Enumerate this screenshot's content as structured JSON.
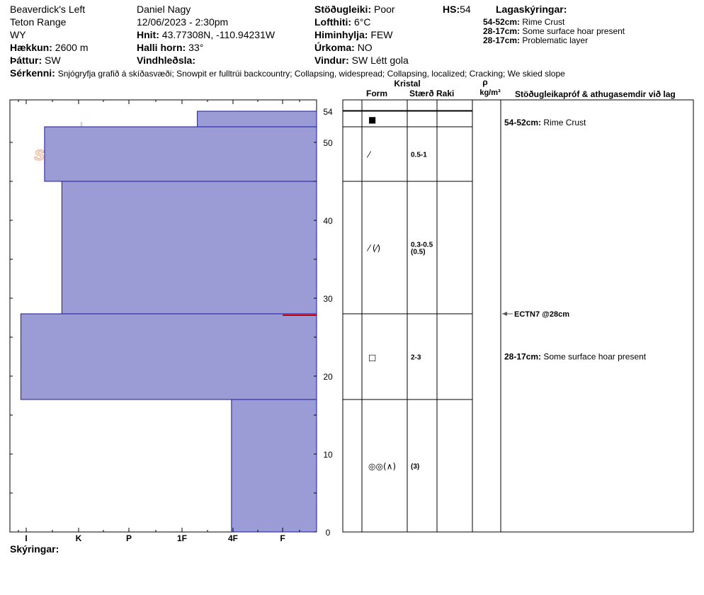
{
  "header": {
    "location": "Beaverdick's Left",
    "range": "Teton Range",
    "state": "WY",
    "elevation_label": "Hækkun:",
    "elevation": "2600 m",
    "aspect_label": "Þáttur:",
    "aspect": "SW",
    "observer": "Daniel Nagy",
    "datetime": "12/06/2023 - 2:30pm",
    "coords_label": "Hnit:",
    "coords": "43.77308N, -110.94231W",
    "slope_label": "Halli horn:",
    "slope": "33°",
    "wind_loading_label": "Vindhleðsla:",
    "wind_loading": "",
    "stability_label": "Stöðugleiki:",
    "stability": "Poor",
    "hs_label": "HS:",
    "hs": "54",
    "air_temp_label": "Lofthiti:",
    "air_temp": "6°C",
    "sky_label": "Himinhylja:",
    "sky": "FEW",
    "precip_label": "Úrkoma:",
    "precip": "NO",
    "wind_label": "Vindur:",
    "wind": "SW Létt gola",
    "features_label": "Sérkenni:",
    "features": "Snjógryfja grafið á skíðasvæði;  Snowpit er fulltrúi backcountry;  Collapsing, widespread;  Collapsing, localized;  Cracking;  We skied slope"
  },
  "legend": {
    "title": "Lagaskýringar:",
    "items": [
      {
        "range": "54-52cm:",
        "text": "Rime Crust"
      },
      {
        "range": "28-17cm:",
        "text": "Some surface hoar present"
      },
      {
        "range": "28-17cm:",
        "text": "Problematic layer"
      }
    ]
  },
  "table_headers": {
    "kristal": "Kristal",
    "form": "Form",
    "size": "Stærð",
    "moisture": "Raki",
    "rho": "ρ",
    "density_unit": "kg/m³",
    "comments": "Stöðugleikapróf & athugasemdir við lag"
  },
  "footer": {
    "notes_label": "Skýringar:"
  },
  "watermark": "SNOW PILOT",
  "colors": {
    "layer_fill": "#9b9bd6",
    "layer_stroke": "#1a1aa0",
    "problem_line": "#cc0000",
    "watermark": "#f2b89a"
  },
  "chart_data": {
    "type": "bar",
    "orientation": "horizontal",
    "y_unit": "cm",
    "ylim": [
      0,
      54
    ],
    "y_ticks": [
      "0",
      "10",
      "20",
      "30",
      "40",
      "50",
      "54"
    ],
    "x_categories": [
      "I",
      "K",
      "P",
      "1F",
      "4F",
      "F"
    ],
    "hardness_scale_max": 6,
    "layers": [
      {
        "top": 54,
        "bottom": 52,
        "hardness": 4.3,
        "form_icon": "■",
        "size": "",
        "comment_range": "54-52cm:",
        "comment": "Rime Crust"
      },
      {
        "top": 52,
        "bottom": 45,
        "hardness": 1.35,
        "form_icon": "⁄",
        "size": "0.5-1",
        "comment_range": "",
        "comment": ""
      },
      {
        "top": 45,
        "bottom": 28,
        "hardness": 1.68,
        "form_icon": "⁄ (⁄)",
        "size": "0.3-0.5\n(0.5)",
        "comment_range": "",
        "comment": ""
      },
      {
        "top": 28,
        "bottom": 17,
        "hardness": 0.67,
        "form_icon": "□",
        "size": "2-3",
        "comment_range": "28-17cm:",
        "comment": "Some surface hoar present"
      },
      {
        "top": 17,
        "bottom": 0,
        "hardness": 4.97,
        "form_icon": "◎◎(∧)",
        "size": "(3)",
        "comment_range": "",
        "comment": ""
      }
    ],
    "problem_layer_depth": 28,
    "stability_tests": [
      {
        "depth": 28,
        "label": "ECTN7 @28cm"
      }
    ]
  }
}
